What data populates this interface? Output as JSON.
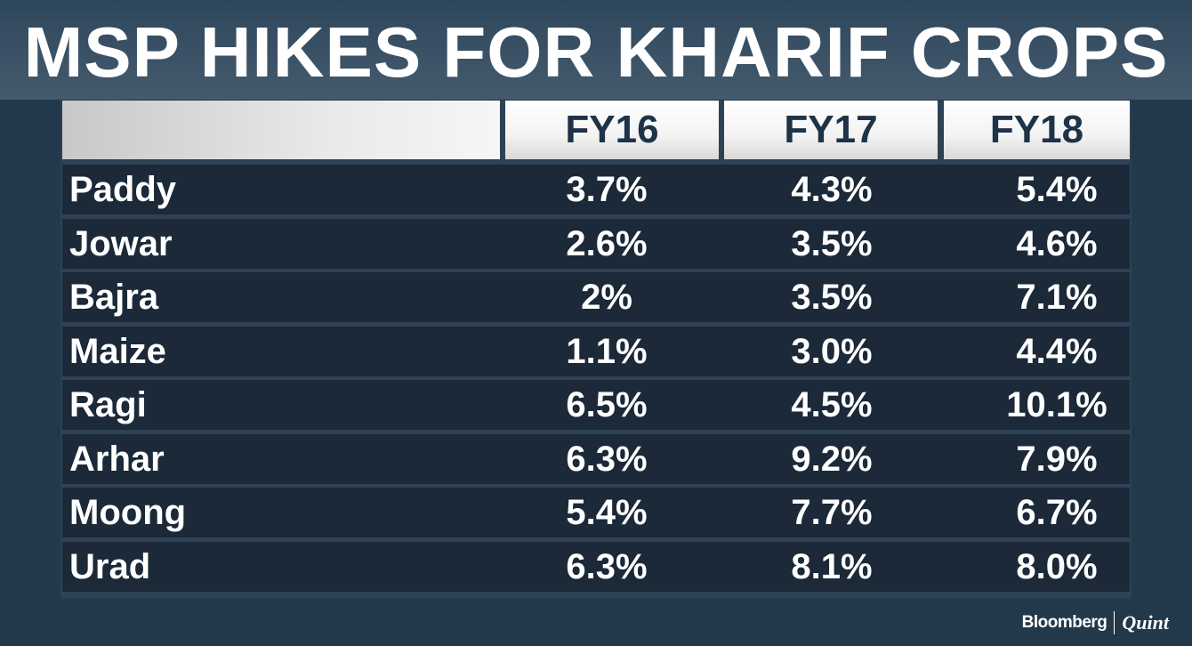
{
  "title": "MSP HIKES FOR KHARIF CROPS",
  "logo": {
    "left": "Bloomberg",
    "right": "Quint"
  },
  "chart_data": {
    "type": "table",
    "title": "MSP HIKES FOR KHARIF CROPS",
    "columns": [
      "FY16",
      "FY17",
      "FY18"
    ],
    "rows": [
      {
        "crop": "Paddy",
        "values": [
          "3.7%",
          "4.3%",
          "5.4%"
        ]
      },
      {
        "crop": "Jowar",
        "values": [
          "2.6%",
          "3.5%",
          "4.6%"
        ]
      },
      {
        "crop": "Bajra",
        "values": [
          "2%",
          "3.5%",
          "7.1%"
        ]
      },
      {
        "crop": "Maize",
        "values": [
          "1.1%",
          "3.0%",
          "4.4%"
        ]
      },
      {
        "crop": "Ragi",
        "values": [
          "6.5%",
          "4.5%",
          "10.1%"
        ]
      },
      {
        "crop": "Arhar",
        "values": [
          "6.3%",
          "9.2%",
          "7.9%"
        ]
      },
      {
        "crop": "Moong",
        "values": [
          "5.4%",
          "7.7%",
          "6.7%"
        ]
      },
      {
        "crop": "Urad",
        "values": [
          "6.3%",
          "8.1%",
          "8.0%"
        ]
      }
    ]
  }
}
